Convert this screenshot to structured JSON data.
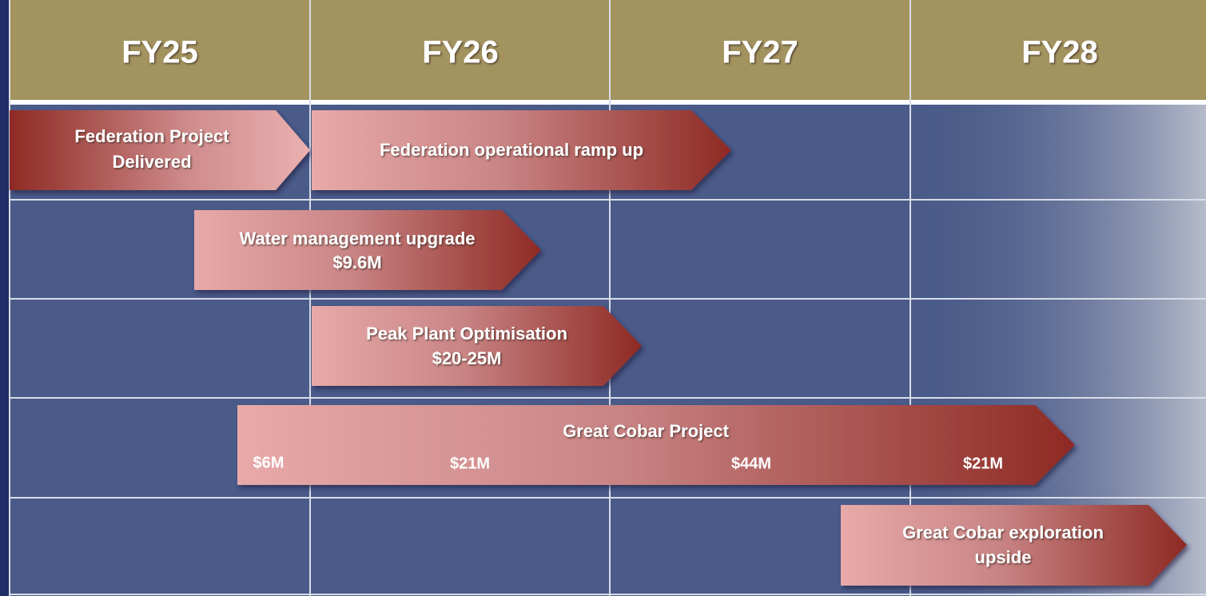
{
  "header": {
    "columns": [
      "FY25",
      "FY26",
      "FY27",
      "FY28"
    ]
  },
  "tasks": [
    {
      "lines": [
        "Federation Project",
        "Delivered"
      ]
    },
    {
      "lines": [
        "Federation operational ramp up"
      ]
    },
    {
      "lines": [
        "Water management upgrade",
        "$9.6M"
      ]
    },
    {
      "lines": [
        "Peak Plant Optimisation",
        "$20-25M"
      ]
    },
    {
      "lines": [
        "Great Cobar Project"
      ],
      "amounts": [
        "$6M",
        "$21M",
        "$44M",
        "$21M"
      ]
    },
    {
      "lines": [
        "Great Cobar exploration",
        "upside"
      ]
    }
  ]
}
